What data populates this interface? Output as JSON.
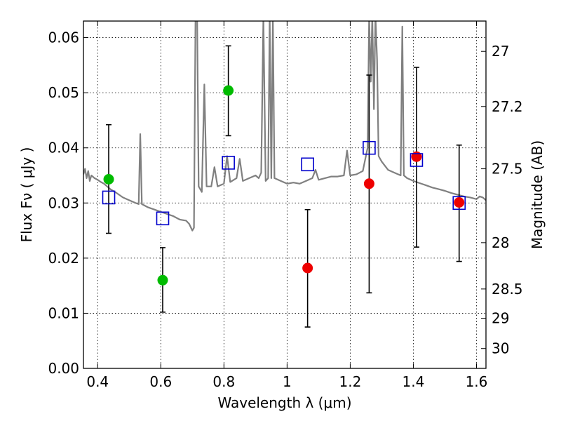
{
  "chart_data": {
    "type": "scatter",
    "xlabel": "Wavelength  λ (μm)",
    "ylabel": "Flux  Fν  ( μJy )",
    "y2label": "Magnitude (AB)",
    "xlim": [
      0.355,
      1.63
    ],
    "ylim": [
      0.0,
      0.063
    ],
    "grid": true,
    "x_ticks": [
      0.4,
      0.6,
      0.8,
      1.0,
      1.2,
      1.4,
      1.6
    ],
    "x_tick_labels": [
      "0.4",
      "0.6",
      "0.8",
      "1",
      "1.2",
      "1.4",
      "1.6"
    ],
    "y_ticks": [
      0.0,
      0.01,
      0.02,
      0.03,
      0.04,
      0.05,
      0.06
    ],
    "y_tick_labels": [
      "0.00",
      "0.01",
      "0.02",
      "0.03",
      "0.04",
      "0.05",
      "0.06"
    ],
    "y2_ticks": [
      {
        "label": "27",
        "flux": 0.0575
      },
      {
        "label": "27.2",
        "flux": 0.0475
      },
      {
        "label": "27.5",
        "flux": 0.0362
      },
      {
        "label": "28",
        "flux": 0.0228
      },
      {
        "label": "28.5",
        "flux": 0.0144
      },
      {
        "label": "29",
        "flux": 0.0091
      },
      {
        "label": "30",
        "flux": 0.0036
      }
    ],
    "series": [
      {
        "marker": "circle",
        "color": "#00bb00",
        "points": [
          {
            "x": 0.435,
            "y": 0.0343,
            "err_low": 0.0245,
            "err_high": 0.0442
          },
          {
            "x": 0.606,
            "y": 0.016,
            "err_low": 0.0102,
            "err_high": 0.0219
          },
          {
            "x": 0.814,
            "y": 0.0504,
            "err_low": 0.0422,
            "err_high": 0.0585
          }
        ]
      },
      {
        "marker": "circle",
        "color": "#ee0000",
        "points": [
          {
            "x": 1.065,
            "y": 0.0182,
            "err_low": 0.0075,
            "err_high": 0.0288
          },
          {
            "x": 1.26,
            "y": 0.0335,
            "err_low": 0.0137,
            "err_high": 0.0532
          },
          {
            "x": 1.41,
            "y": 0.0384,
            "err_low": 0.022,
            "err_high": 0.0546
          },
          {
            "x": 1.545,
            "y": 0.0301,
            "err_low": 0.0194,
            "err_high": 0.0405
          }
        ]
      },
      {
        "marker": "open-square",
        "color": "#0000cc",
        "points": [
          {
            "x": 0.435,
            "y": 0.031
          },
          {
            "x": 0.606,
            "y": 0.0272
          },
          {
            "x": 0.814,
            "y": 0.0373
          },
          {
            "x": 1.065,
            "y": 0.037
          },
          {
            "x": 1.26,
            "y": 0.04
          },
          {
            "x": 1.41,
            "y": 0.0378
          },
          {
            "x": 1.545,
            "y": 0.03
          }
        ]
      }
    ],
    "spectrum": {
      "color": "#808080",
      "points": [
        [
          0.355,
          0.0352
        ],
        [
          0.36,
          0.0362
        ],
        [
          0.365,
          0.0345
        ],
        [
          0.37,
          0.0358
        ],
        [
          0.375,
          0.034
        ],
        [
          0.38,
          0.035
        ],
        [
          0.39,
          0.0345
        ],
        [
          0.4,
          0.0342
        ],
        [
          0.41,
          0.0338
        ],
        [
          0.42,
          0.0335
        ],
        [
          0.43,
          0.033
        ],
        [
          0.44,
          0.0325
        ],
        [
          0.46,
          0.0318
        ],
        [
          0.48,
          0.031
        ],
        [
          0.5,
          0.0305
        ],
        [
          0.52,
          0.03
        ],
        [
          0.53,
          0.0298
        ],
        [
          0.535,
          0.0425
        ],
        [
          0.54,
          0.0298
        ],
        [
          0.56,
          0.0292
        ],
        [
          0.58,
          0.0288
        ],
        [
          0.6,
          0.0284
        ],
        [
          0.62,
          0.028
        ],
        [
          0.64,
          0.0276
        ],
        [
          0.66,
          0.027
        ],
        [
          0.68,
          0.0268
        ],
        [
          0.69,
          0.0262
        ],
        [
          0.7,
          0.025
        ],
        [
          0.705,
          0.0255
        ],
        [
          0.71,
          0.064
        ],
        [
          0.715,
          0.064
        ],
        [
          0.72,
          0.033
        ],
        [
          0.73,
          0.032
        ],
        [
          0.738,
          0.0515
        ],
        [
          0.745,
          0.033
        ],
        [
          0.76,
          0.033
        ],
        [
          0.77,
          0.0365
        ],
        [
          0.78,
          0.033
        ],
        [
          0.8,
          0.0335
        ],
        [
          0.81,
          0.0385
        ],
        [
          0.82,
          0.0338
        ],
        [
          0.84,
          0.0345
        ],
        [
          0.85,
          0.038
        ],
        [
          0.86,
          0.034
        ],
        [
          0.88,
          0.0345
        ],
        [
          0.9,
          0.035
        ],
        [
          0.91,
          0.0345
        ],
        [
          0.918,
          0.0355
        ],
        [
          0.925,
          0.064
        ],
        [
          0.932,
          0.034
        ],
        [
          0.94,
          0.0345
        ],
        [
          0.945,
          0.064
        ],
        [
          0.95,
          0.0345
        ],
        [
          0.955,
          0.064
        ],
        [
          0.96,
          0.0345
        ],
        [
          0.98,
          0.034
        ],
        [
          1.0,
          0.0335
        ],
        [
          1.02,
          0.0337
        ],
        [
          1.04,
          0.0335
        ],
        [
          1.06,
          0.034
        ],
        [
          1.08,
          0.0345
        ],
        [
          1.09,
          0.036
        ],
        [
          1.1,
          0.0342
        ],
        [
          1.12,
          0.0345
        ],
        [
          1.14,
          0.0348
        ],
        [
          1.16,
          0.0348
        ],
        [
          1.18,
          0.035
        ],
        [
          1.19,
          0.0395
        ],
        [
          1.2,
          0.035
        ],
        [
          1.22,
          0.0352
        ],
        [
          1.24,
          0.0358
        ],
        [
          1.255,
          0.04
        ],
        [
          1.26,
          0.064
        ],
        [
          1.265,
          0.052
        ],
        [
          1.27,
          0.064
        ],
        [
          1.275,
          0.047
        ],
        [
          1.28,
          0.064
        ],
        [
          1.285,
          0.056
        ],
        [
          1.29,
          0.0385
        ],
        [
          1.3,
          0.0375
        ],
        [
          1.32,
          0.036
        ],
        [
          1.34,
          0.0355
        ],
        [
          1.36,
          0.035
        ],
        [
          1.365,
          0.062
        ],
        [
          1.37,
          0.035
        ],
        [
          1.38,
          0.0345
        ],
        [
          1.4,
          0.034
        ],
        [
          1.42,
          0.0336
        ],
        [
          1.44,
          0.0332
        ],
        [
          1.46,
          0.0328
        ],
        [
          1.48,
          0.0325
        ],
        [
          1.5,
          0.0322
        ],
        [
          1.52,
          0.0318
        ],
        [
          1.54,
          0.0315
        ],
        [
          1.56,
          0.0312
        ],
        [
          1.58,
          0.031
        ],
        [
          1.6,
          0.0307
        ],
        [
          1.61,
          0.0312
        ],
        [
          1.62,
          0.031
        ],
        [
          1.63,
          0.0305
        ]
      ]
    }
  }
}
